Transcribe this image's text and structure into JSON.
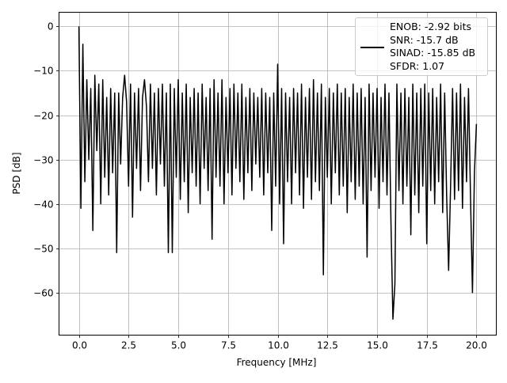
{
  "chart_data": {
    "type": "line",
    "title": "",
    "xlabel": "Frequency [MHz]",
    "ylabel": "PSD [dB]",
    "xlim": [
      -1.0,
      21.0
    ],
    "ylim": [
      -69.6,
      3.2
    ],
    "xticks": [
      0.0,
      2.5,
      5.0,
      7.5,
      10.0,
      12.5,
      15.0,
      17.5,
      20.0
    ],
    "xtick_labels": [
      "0.0",
      "2.5",
      "5.0",
      "7.5",
      "10.0",
      "12.5",
      "15.0",
      "17.5",
      "20.0"
    ],
    "yticks": [
      0,
      -10,
      -20,
      -30,
      -40,
      -50,
      -60
    ],
    "ytick_labels": [
      "0",
      "−10",
      "−20",
      "−30",
      "−40",
      "−50",
      "−60"
    ],
    "grid": true,
    "legend_placement": "top-right",
    "series": [
      {
        "name": "ENOB: -2.92 bits\nSNR: -15.7 dB\nSINAD: -15.85 dB\nSFDR: 1.07",
        "color": "#000000",
        "x_start": 0.0,
        "x_step": 0.1,
        "values": [
          0,
          -41,
          -4,
          -35,
          -12,
          -30,
          -14,
          -46,
          -11,
          -28,
          -13,
          -40,
          -12,
          -34,
          -16,
          -38,
          -14,
          -33,
          -15,
          -51,
          -15,
          -31,
          -16,
          -11,
          -17,
          -36,
          -13,
          -43,
          -15,
          -32,
          -14,
          -37,
          -16,
          -12,
          -18,
          -35,
          -13,
          -32,
          -15,
          -38,
          -14,
          -31,
          -13,
          -36,
          -15,
          -51,
          -13,
          -51,
          -14,
          -34,
          -12,
          -39,
          -15,
          -35,
          -13,
          -42,
          -16,
          -33,
          -14,
          -36,
          -15,
          -40,
          -13,
          -32,
          -16,
          -37,
          -14,
          -48,
          -12,
          -34,
          -15,
          -36,
          -12,
          -40,
          -16,
          -33,
          -14,
          -38,
          -13,
          -32,
          -15,
          -35,
          -13,
          -39,
          -16,
          -33,
          -14,
          -37,
          -15,
          -31,
          -16,
          -34,
          -14,
          -38,
          -15,
          -33,
          -16,
          -46,
          -15,
          -36,
          -8.5,
          -40,
          -14,
          -49,
          -15,
          -35,
          -16,
          -40,
          -14,
          -33,
          -15,
          -38,
          -13,
          -41,
          -16,
          -34,
          -14,
          -39,
          -12,
          -35,
          -15,
          -37,
          -13,
          -56,
          -16,
          -34,
          -14,
          -40,
          -15,
          -33,
          -13,
          -38,
          -15,
          -36,
          -14,
          -42,
          -16,
          -35,
          -13,
          -39,
          -15,
          -36,
          -14,
          -40,
          -16,
          -52,
          -13,
          -37,
          -15,
          -34,
          -14,
          -41,
          -16,
          -35,
          -13,
          -38,
          -15,
          -44,
          -66,
          -58,
          -13,
          -37,
          -15,
          -40,
          -14,
          -36,
          -16,
          -47,
          -13,
          -38,
          -15,
          -42,
          -14,
          -36,
          -13,
          -49,
          -15,
          -37,
          -14,
          -40,
          -16,
          -35,
          -13,
          -42,
          -15,
          -38,
          -55,
          -36,
          -14,
          -39,
          -15,
          -37,
          -13,
          -41,
          -16,
          -35,
          -14,
          -38,
          -60,
          -33,
          -22
        ]
      }
    ]
  }
}
